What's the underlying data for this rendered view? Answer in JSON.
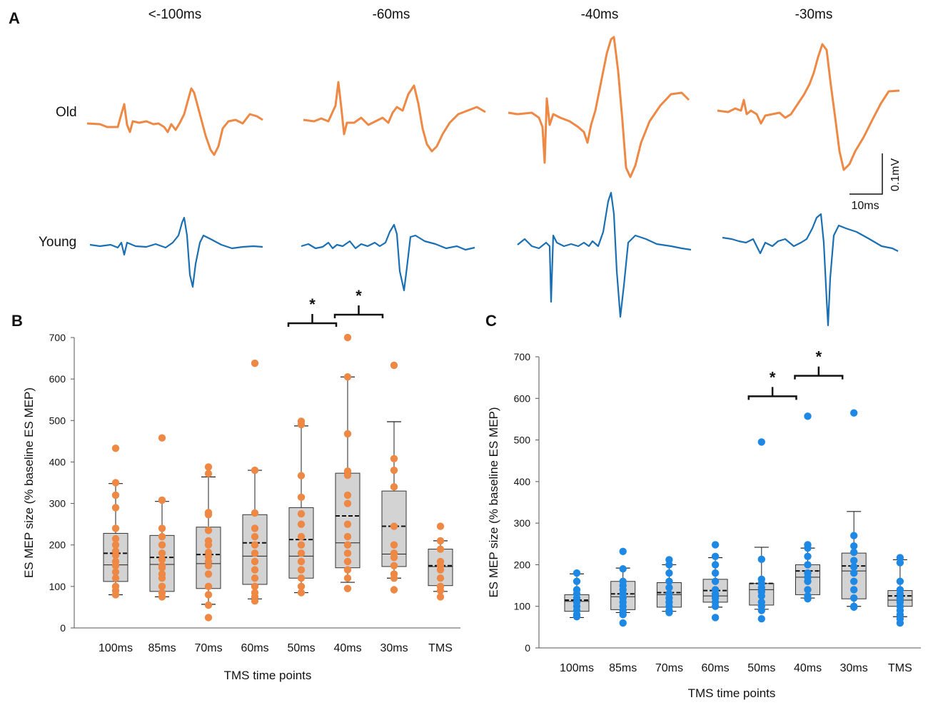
{
  "colors": {
    "old": "#ee8845",
    "young": "#1a6fb3",
    "young_dot": "#1e88e5",
    "box_fill": "#d3d3d3"
  },
  "panel_a": {
    "label": "A",
    "columns": [
      "<-100ms",
      "-60ms",
      "-40ms",
      "-30ms"
    ],
    "rows": [
      "Old",
      "Young"
    ],
    "scale_bar": {
      "amplitude": "0.1mV",
      "time": "10ms"
    }
  },
  "chart_data": [
    {
      "type": "box",
      "panel": "B",
      "group": "Old",
      "title": "",
      "xlabel": "TMS time points",
      "ylabel": "ES MEP size (% baseline ES MEP)",
      "ylim": [
        0,
        700
      ],
      "yticks": [
        0,
        100,
        200,
        300,
        400,
        500,
        600,
        700
      ],
      "categories": [
        "100ms",
        "85ms",
        "70ms",
        "60ms",
        "50ms",
        "40ms",
        "30ms",
        "TMS"
      ],
      "boxes": [
        {
          "whisker_low": 80,
          "q1": 112,
          "median": 152,
          "mean": 180,
          "q3": 228,
          "whisker_high": 348
        },
        {
          "whisker_low": 75,
          "q1": 88,
          "median": 153,
          "mean": 170,
          "q3": 223,
          "whisker_high": 305
        },
        {
          "whisker_low": 57,
          "q1": 95,
          "median": 155,
          "mean": 177,
          "q3": 243,
          "whisker_high": 364
        },
        {
          "whisker_low": 70,
          "q1": 105,
          "median": 173,
          "mean": 205,
          "q3": 273,
          "whisker_high": 380
        },
        {
          "whisker_low": 85,
          "q1": 120,
          "median": 173,
          "mean": 213,
          "q3": 290,
          "whisker_high": 487
        },
        {
          "whisker_low": 110,
          "q1": 145,
          "median": 205,
          "mean": 270,
          "q3": 373,
          "whisker_high": 605
        },
        {
          "whisker_low": 120,
          "q1": 148,
          "median": 178,
          "mean": 245,
          "q3": 330,
          "whisker_high": 497
        },
        {
          "whisker_low": 88,
          "q1": 102,
          "median": 148,
          "mean": 150,
          "q3": 190,
          "whisker_high": 210
        }
      ],
      "points": [
        [
          433,
          350,
          320,
          290,
          240,
          215,
          200,
          185,
          175,
          160,
          150,
          135,
          120,
          100,
          90,
          80
        ],
        [
          458,
          308,
          240,
          220,
          200,
          180,
          165,
          150,
          145,
          130,
          120,
          100,
          85,
          75
        ],
        [
          388,
          372,
          278,
          273,
          235,
          210,
          200,
          182,
          172,
          160,
          150,
          130,
          100,
          80,
          55,
          25
        ],
        [
          638,
          380,
          277,
          240,
          220,
          200,
          180,
          160,
          140,
          120,
          100,
          85,
          75,
          65
        ],
        [
          498,
          490,
          367,
          315,
          275,
          250,
          220,
          200,
          180,
          160,
          140,
          120,
          100,
          85
        ],
        [
          700,
          605,
          468,
          378,
          368,
          320,
          300,
          250,
          220,
          200,
          180,
          160,
          140,
          120,
          95
        ],
        [
          633,
          408,
          380,
          340,
          245,
          200,
          180,
          170,
          150,
          130,
          120,
          92
        ],
        [
          245,
          210,
          190,
          160,
          150,
          140,
          120,
          100,
          90,
          75
        ]
      ],
      "significance": [
        {
          "from": "50ms",
          "to": "40ms",
          "label": "*"
        },
        {
          "from": "40ms",
          "to": "30ms",
          "label": "*"
        }
      ]
    },
    {
      "type": "box",
      "panel": "C",
      "group": "Young",
      "title": "",
      "xlabel": "TMS time points",
      "ylabel": "ES MEP size (% baseline ES MEP)",
      "ylim": [
        0,
        700
      ],
      "yticks": [
        0,
        100,
        200,
        300,
        400,
        500,
        600,
        700
      ],
      "categories": [
        "100ms",
        "85ms",
        "70ms",
        "60ms",
        "50ms",
        "40ms",
        "30ms",
        "TMS"
      ],
      "boxes": [
        {
          "whisker_low": 73,
          "q1": 88,
          "median": 112,
          "mean": 115,
          "q3": 128,
          "whisker_high": 178
        },
        {
          "whisker_low": 85,
          "q1": 92,
          "median": 123,
          "mean": 130,
          "q3": 160,
          "whisker_high": 192
        },
        {
          "whisker_low": 88,
          "q1": 98,
          "median": 128,
          "mean": 133,
          "q3": 157,
          "whisker_high": 200
        },
        {
          "whisker_low": 98,
          "q1": 110,
          "median": 125,
          "mean": 138,
          "q3": 165,
          "whisker_high": 217
        },
        {
          "whisker_low": 93,
          "q1": 103,
          "median": 140,
          "mean": 155,
          "q3": 155,
          "whisker_high": 242
        },
        {
          "whisker_low": 120,
          "q1": 128,
          "median": 170,
          "mean": 185,
          "q3": 200,
          "whisker_high": 240
        },
        {
          "whisker_low": 100,
          "q1": 118,
          "median": 185,
          "mean": 197,
          "q3": 228,
          "whisker_high": 328
        },
        {
          "whisker_low": 75,
          "q1": 100,
          "median": 115,
          "mean": 125,
          "q3": 138,
          "whisker_high": 212
        }
      ],
      "points": [
        [
          180,
          160,
          140,
          130,
          120,
          110,
          100,
          90,
          80,
          75
        ],
        [
          232,
          190,
          160,
          150,
          140,
          130,
          120,
          110,
          100,
          90,
          80,
          60
        ],
        [
          212,
          200,
          180,
          160,
          145,
          130,
          120,
          110,
          100,
          90,
          85
        ],
        [
          248,
          220,
          200,
          180,
          160,
          140,
          130,
          120,
          110,
          100,
          73
        ],
        [
          495,
          213,
          165,
          155,
          145,
          135,
          125,
          110,
          100,
          90,
          70
        ],
        [
          557,
          248,
          240,
          220,
          200,
          180,
          170,
          160,
          140,
          125,
          118
        ],
        [
          565,
          270,
          245,
          230,
          210,
          195,
          180,
          160,
          140,
          120,
          100,
          98
        ],
        [
          217,
          205,
          160,
          140,
          130,
          120,
          110,
          100,
          90,
          80,
          70,
          60
        ]
      ],
      "significance": [
        {
          "from": "50ms",
          "to": "40ms",
          "label": "*"
        },
        {
          "from": "40ms",
          "to": "30ms",
          "label": "*"
        }
      ]
    }
  ]
}
